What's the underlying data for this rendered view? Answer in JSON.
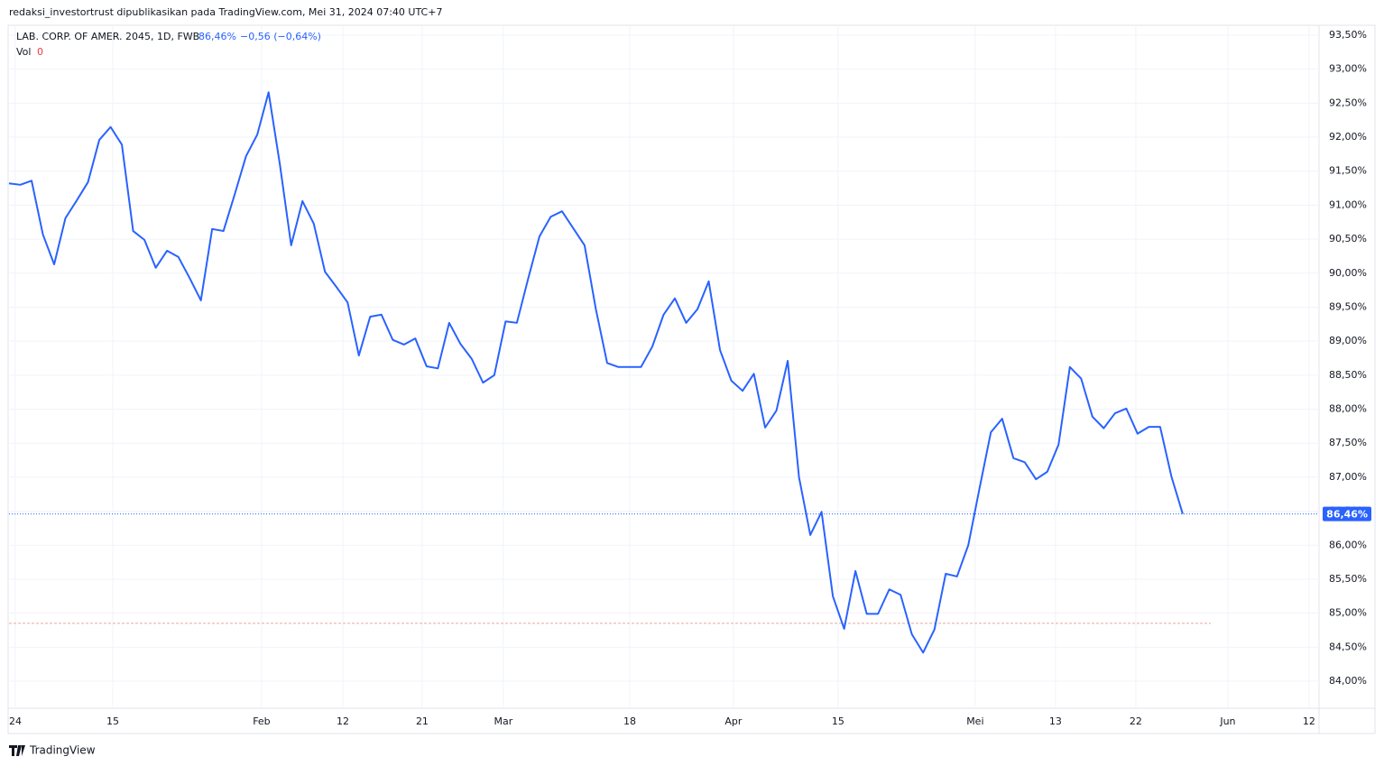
{
  "chart_data": {
    "type": "line",
    "header": "redaksi_investortrust dipublikasikan pada TradingView.com, Mei 31, 2024 07:40 UTC+7",
    "symbol": "LAB. CORP. OF AMER. 2045, 1D, FWB",
    "last_value_text": "86,46%",
    "change_text": "−0,56 (−0,64%)",
    "volume_label": "Vol",
    "volume_value": "0",
    "brand": "TradingView",
    "last_price_label": "86,46%",
    "volume_baseline": 84.85,
    "series": [
      {
        "name": "LAB. CORP. OF AMER. 2045",
        "color": "#2962ff",
        "values": [
          91.32,
          91.3,
          91.36,
          90.57,
          90.13,
          90.81,
          91.07,
          91.34,
          91.96,
          92.15,
          91.89,
          90.62,
          90.49,
          90.08,
          90.33,
          90.24,
          89.93,
          89.6,
          90.65,
          90.62,
          91.16,
          91.72,
          92.04,
          92.66,
          91.6,
          90.41,
          91.06,
          90.73,
          90.02,
          89.8,
          89.57,
          88.79,
          89.36,
          89.39,
          89.02,
          88.95,
          89.04,
          88.63,
          88.6,
          89.27,
          88.96,
          88.74,
          88.39,
          88.5,
          89.29,
          89.27,
          89.92,
          90.54,
          90.83,
          90.91,
          90.66,
          90.41,
          89.47,
          88.68,
          88.62,
          88.62,
          88.62,
          88.92,
          89.39,
          89.63,
          89.27,
          89.47,
          89.88,
          88.87,
          88.42,
          88.27,
          88.52,
          87.73,
          87.98,
          88.71,
          87.0,
          86.15,
          86.49,
          85.25,
          84.77,
          85.62,
          84.99,
          84.99,
          85.35,
          85.27,
          84.69,
          84.42,
          84.76,
          85.58,
          85.54,
          86.0,
          86.84,
          87.66,
          87.86,
          87.28,
          87.22,
          86.97,
          87.08,
          87.48,
          88.62,
          88.45,
          87.89,
          87.72,
          87.94,
          88.01,
          87.64,
          87.74,
          87.74,
          87.01,
          86.46
        ]
      }
    ],
    "xlim": [
      0,
      116
    ],
    "xticks": [
      {
        "value": 0.56,
        "label": "24"
      },
      {
        "value": 9.19,
        "label": "15"
      },
      {
        "value": 22.38,
        "label": "Feb"
      },
      {
        "value": 29.58,
        "label": "12"
      },
      {
        "value": 36.61,
        "label": "21"
      },
      {
        "value": 43.8,
        "label": "Mar"
      },
      {
        "value": 55.0,
        "label": "18"
      },
      {
        "value": 64.19,
        "label": "Apr"
      },
      {
        "value": 73.46,
        "label": "15"
      },
      {
        "value": 85.61,
        "label": "Mei"
      },
      {
        "value": 92.73,
        "label": "13"
      },
      {
        "value": 99.84,
        "label": "22"
      },
      {
        "value": 108.0,
        "label": "Jun"
      },
      {
        "value": 115.19,
        "label": "12"
      }
    ],
    "ylim": [
      84.0,
      93.5
    ],
    "yticks": [
      {
        "value": 84.0,
        "label": "84,00%"
      },
      {
        "value": 84.5,
        "label": "84,50%"
      },
      {
        "value": 85.0,
        "label": "85,00%"
      },
      {
        "value": 85.5,
        "label": "85,50%"
      },
      {
        "value": 86.0,
        "label": "86,00%"
      },
      {
        "value": 86.5,
        "label": "86,50%"
      },
      {
        "value": 87.0,
        "label": "87,00%"
      },
      {
        "value": 87.5,
        "label": "87,50%"
      },
      {
        "value": 88.0,
        "label": "88,00%"
      },
      {
        "value": 88.5,
        "label": "88,50%"
      },
      {
        "value": 89.0,
        "label": "89,00%"
      },
      {
        "value": 89.5,
        "label": "89,50%"
      },
      {
        "value": 90.0,
        "label": "90,00%"
      },
      {
        "value": 90.5,
        "label": "90,50%"
      },
      {
        "value": 91.0,
        "label": "91,00%"
      },
      {
        "value": 91.5,
        "label": "91,50%"
      },
      {
        "value": 92.0,
        "label": "92,00%"
      },
      {
        "value": 92.5,
        "label": "92,50%"
      },
      {
        "value": 93.0,
        "label": "93,00%"
      },
      {
        "value": 93.5,
        "label": "93,50%"
      }
    ],
    "grid": true
  }
}
